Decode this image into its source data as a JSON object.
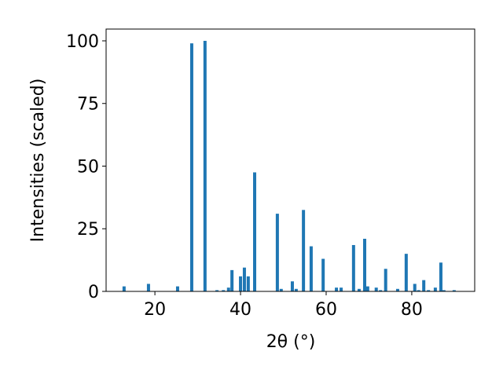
{
  "chart_data": {
    "type": "bar",
    "xlabel": "2θ (°)",
    "ylabel": "Intensities (scaled)",
    "color": "#1f77b4",
    "x": [
      12.8,
      18.5,
      25.3,
      28.6,
      31.7,
      34.5,
      36.0,
      37.2,
      38.0,
      40.0,
      40.9,
      41.8,
      43.3,
      48.6,
      49.5,
      52.1,
      53.0,
      54.7,
      56.5,
      59.3,
      62.4,
      63.5,
      66.4,
      67.7,
      69.0,
      69.7,
      71.7,
      72.7,
      73.9,
      76.7,
      78.7,
      80.7,
      81.6,
      82.8,
      83.9,
      85.5,
      86.8,
      87.5,
      89.9
    ],
    "values": [
      2,
      3,
      2,
      99,
      100,
      0.5,
      0.5,
      1.5,
      8.5,
      6,
      9.5,
      6,
      47.5,
      31,
      1,
      4,
      1,
      32.5,
      18,
      13,
      1.5,
      1.5,
      18.5,
      1,
      21,
      2,
      1.5,
      0.5,
      9,
      1,
      15,
      3,
      0.5,
      4.5,
      0.5,
      1.5,
      11.5,
      0.5,
      0.5
    ],
    "xlim": [
      8.6,
      94.7
    ],
    "ylim": [
      0,
      104.7
    ],
    "xticks": [
      20,
      40,
      60,
      80
    ],
    "yticks": [
      0,
      25,
      50,
      75,
      100
    ]
  }
}
